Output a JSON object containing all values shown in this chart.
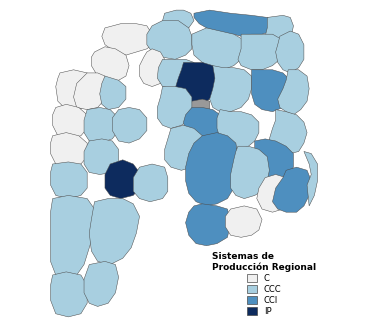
{
  "legend_title": "Sistemas de\nProducción Regional",
  "legend_labels": [
    "C",
    "CCC",
    "CCI",
    "IP"
  ],
  "colors": {
    "C": "#f0f0f0",
    "CCC": "#a8cfe0",
    "CCI": "#4e8fbf",
    "IP": "#0d2b5e",
    "gray": "#999999",
    "border": "#4a4a4a",
    "background": "#ffffff"
  },
  "legend_colors": [
    "#f0f0f0",
    "#a8cfe0",
    "#4e8fbf",
    "#0d2b5e"
  ],
  "figsize": [
    3.67,
    3.27
  ],
  "dpi": 100
}
